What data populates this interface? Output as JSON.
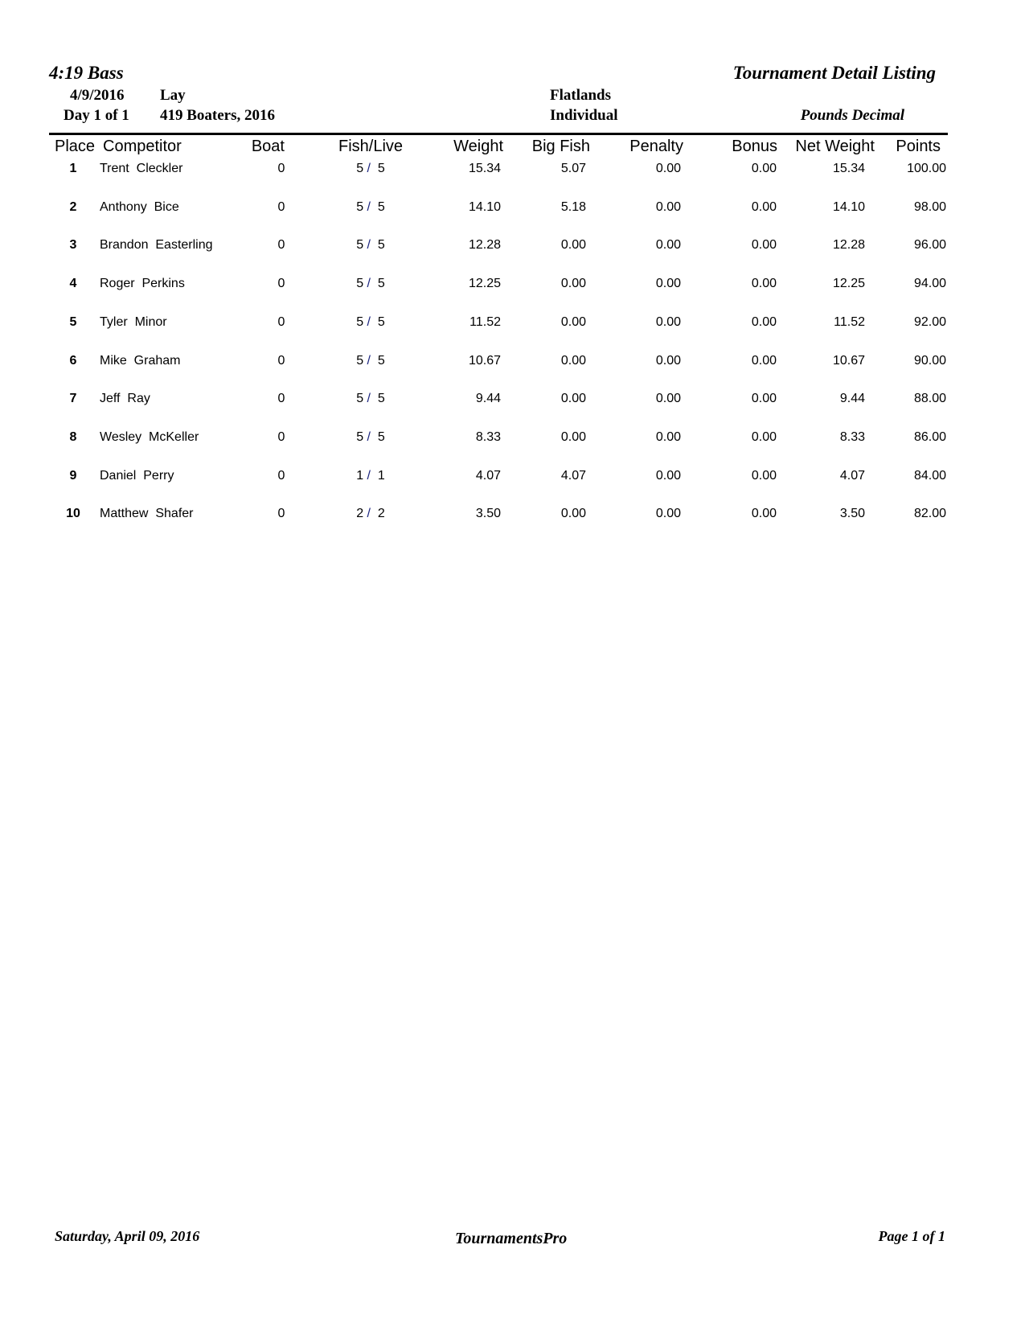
{
  "header": {
    "org": "4:19 Bass",
    "report_title": "Tournament Detail Listing",
    "date": "4/9/2016",
    "day": "Day 1 of 1",
    "lake": "Lay",
    "event": "419 Boaters, 2016",
    "location": "Flatlands",
    "format": "Individual",
    "units": "Pounds Decimal"
  },
  "columns": [
    "Place",
    "Competitor",
    "Boat",
    "Fish/Live",
    "Weight",
    "Big Fish",
    "Penalty",
    "Bonus",
    "Net Weight",
    "Points"
  ],
  "rows": [
    {
      "place": "1",
      "name": "Trent  Cleckler",
      "boat": "0",
      "fish": "5",
      "live": "5",
      "weight": "15.34",
      "big": "5.07",
      "penalty": "0.00",
      "bonus": "0.00",
      "net": "15.34",
      "points": "100.00"
    },
    {
      "place": "2",
      "name": "Anthony  Bice",
      "boat": "0",
      "fish": "5",
      "live": "5",
      "weight": "14.10",
      "big": "5.18",
      "penalty": "0.00",
      "bonus": "0.00",
      "net": "14.10",
      "points": "98.00"
    },
    {
      "place": "3",
      "name": "Brandon  Easterling",
      "boat": "0",
      "fish": "5",
      "live": "5",
      "weight": "12.28",
      "big": "0.00",
      "penalty": "0.00",
      "bonus": "0.00",
      "net": "12.28",
      "points": "96.00"
    },
    {
      "place": "4",
      "name": "Roger  Perkins",
      "boat": "0",
      "fish": "5",
      "live": "5",
      "weight": "12.25",
      "big": "0.00",
      "penalty": "0.00",
      "bonus": "0.00",
      "net": "12.25",
      "points": "94.00"
    },
    {
      "place": "5",
      "name": "Tyler  Minor",
      "boat": "0",
      "fish": "5",
      "live": "5",
      "weight": "11.52",
      "big": "0.00",
      "penalty": "0.00",
      "bonus": "0.00",
      "net": "11.52",
      "points": "92.00"
    },
    {
      "place": "6",
      "name": "Mike  Graham",
      "boat": "0",
      "fish": "5",
      "live": "5",
      "weight": "10.67",
      "big": "0.00",
      "penalty": "0.00",
      "bonus": "0.00",
      "net": "10.67",
      "points": "90.00"
    },
    {
      "place": "7",
      "name": "Jeff  Ray",
      "boat": "0",
      "fish": "5",
      "live": "5",
      "weight": "9.44",
      "big": "0.00",
      "penalty": "0.00",
      "bonus": "0.00",
      "net": "9.44",
      "points": "88.00"
    },
    {
      "place": "8",
      "name": "Wesley  McKeller",
      "boat": "0",
      "fish": "5",
      "live": "5",
      "weight": "8.33",
      "big": "0.00",
      "penalty": "0.00",
      "bonus": "0.00",
      "net": "8.33",
      "points": "86.00"
    },
    {
      "place": "9",
      "name": "Daniel  Perry",
      "boat": "0",
      "fish": "1",
      "live": "1",
      "weight": "4.07",
      "big": "4.07",
      "penalty": "0.00",
      "bonus": "0.00",
      "net": "4.07",
      "points": "84.00"
    },
    {
      "place": "10",
      "name": "Matthew  Shafer",
      "boat": "0",
      "fish": "2",
      "live": "2",
      "weight": "3.50",
      "big": "0.00",
      "penalty": "0.00",
      "bonus": "0.00",
      "net": "3.50",
      "points": "82.00"
    }
  ],
  "footer": {
    "date": "Saturday, April 09, 2016",
    "software": "TournamentsPro",
    "page": "Page 1 of 1"
  }
}
